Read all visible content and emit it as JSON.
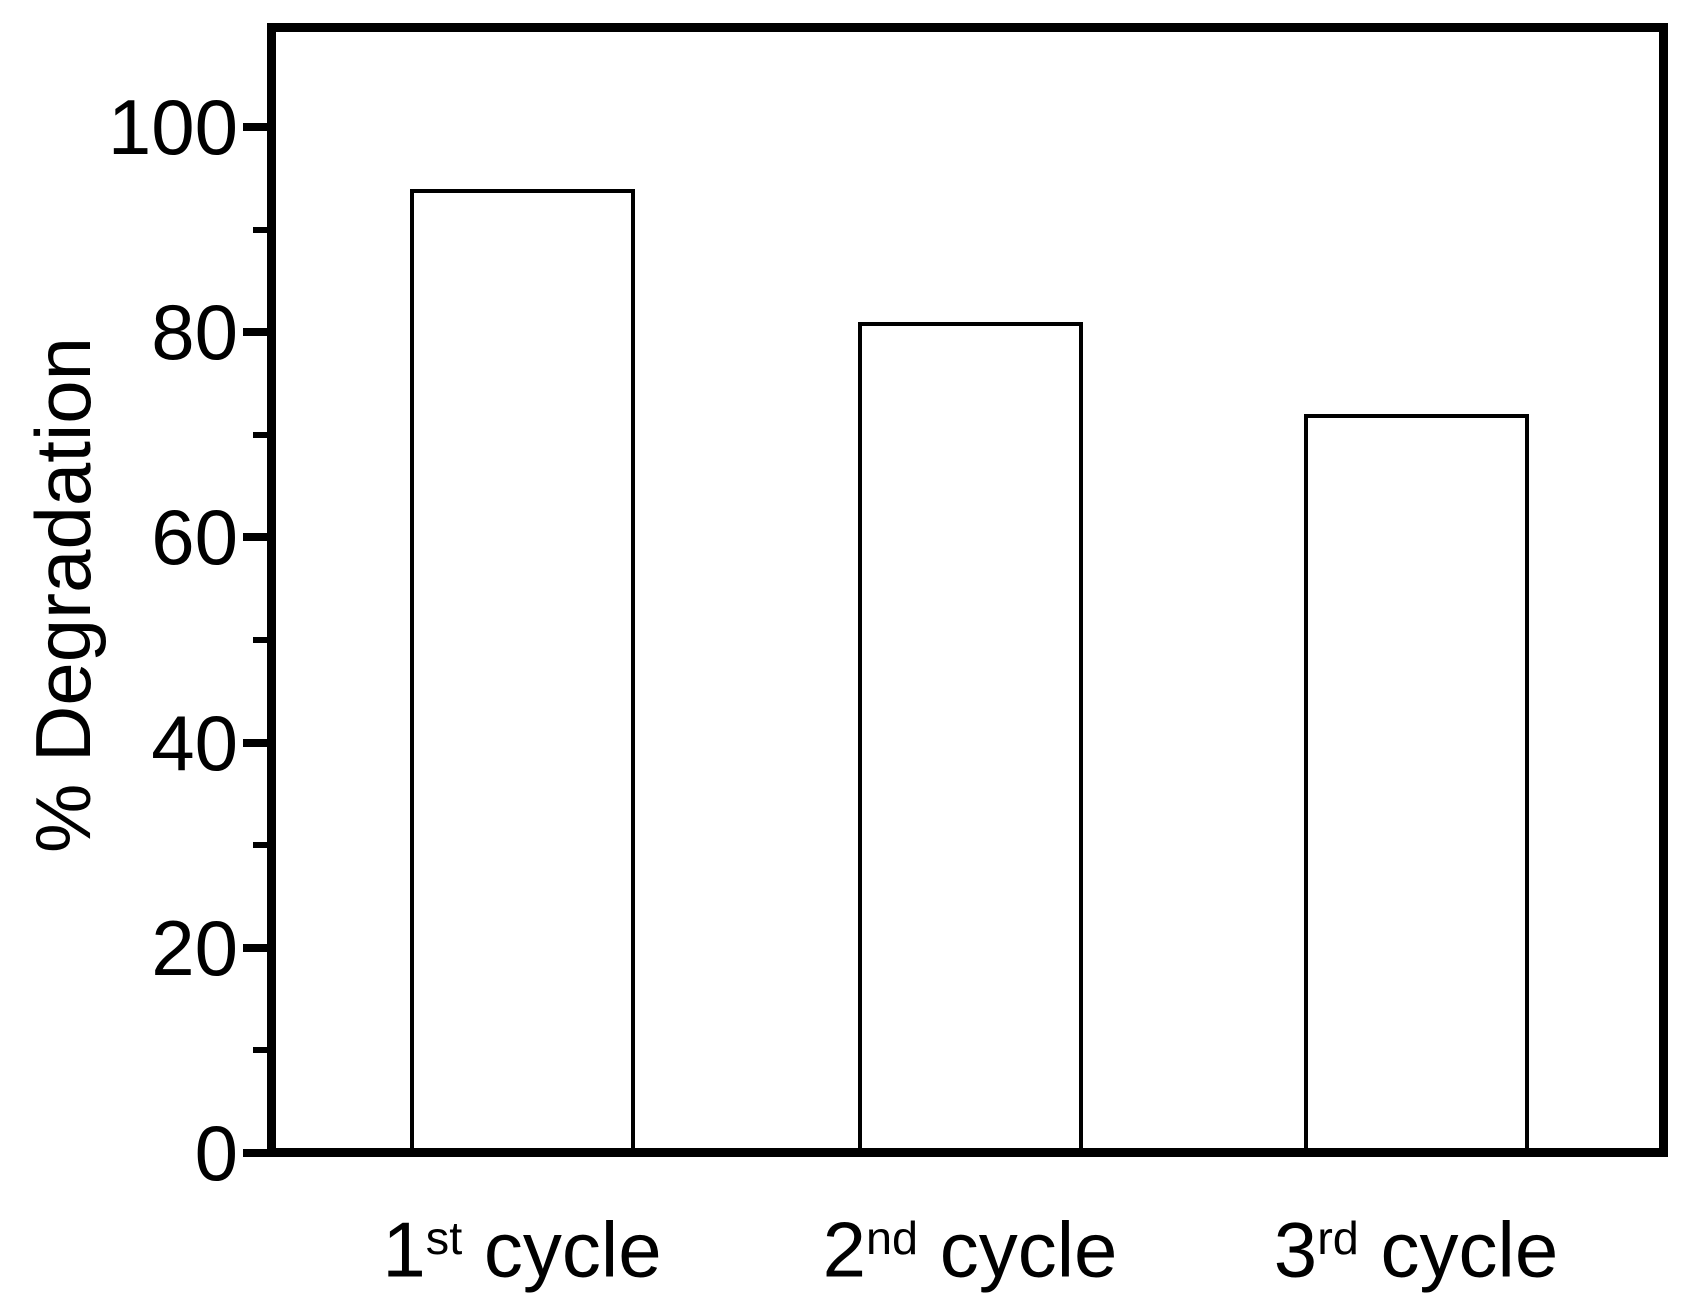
{
  "figure": {
    "background_color": "#ffffff",
    "axis_color": "#000000",
    "text_color": "#000000"
  },
  "chart_data": {
    "type": "bar",
    "title": "",
    "xlabel": "",
    "ylabel": "% Degradation",
    "categories": [
      "1st cycle",
      "2nd cycle",
      "3rd cycle"
    ],
    "categories_rich": [
      {
        "ordinal": "1",
        "suffix": "st",
        "rest": " cycle"
      },
      {
        "ordinal": "2",
        "suffix": "nd",
        "rest": " cycle"
      },
      {
        "ordinal": "3",
        "suffix": "rd",
        "rest": " cycle"
      }
    ],
    "values": [
      94,
      81,
      72
    ],
    "ylim": [
      0,
      110
    ],
    "yticks_major": [
      0,
      20,
      40,
      60,
      80,
      100
    ],
    "yticks_minor": [
      10,
      30,
      50,
      70,
      90
    ],
    "grid": false,
    "legend": false,
    "bar_style": {
      "fill": "#ffffff",
      "stroke": "#000000"
    }
  }
}
